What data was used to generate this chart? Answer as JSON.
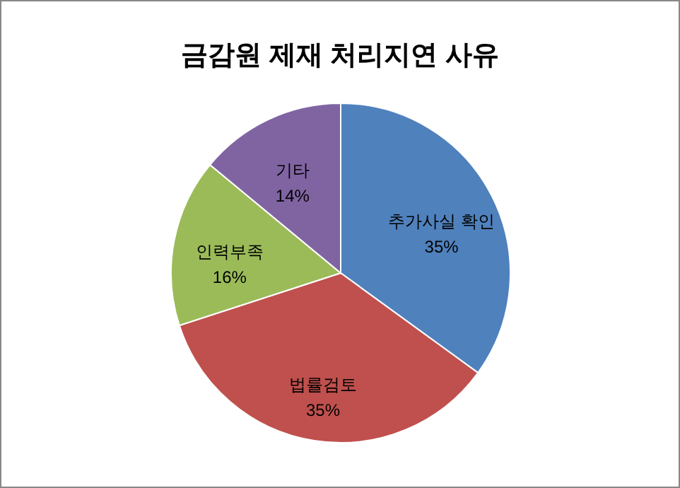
{
  "chart_data": {
    "type": "pie",
    "title": "금감원 제재 처리지연 사유",
    "categories": [
      "추가사실 확인",
      "법률검토",
      "인력부족",
      "기타"
    ],
    "values": [
      35,
      35,
      16,
      14
    ],
    "value_labels": [
      "35%",
      "35%",
      "16%",
      "14%"
    ],
    "colors": [
      "#4f81bd",
      "#c0504d",
      "#9bbb59",
      "#8064a2"
    ],
    "legend": false
  }
}
